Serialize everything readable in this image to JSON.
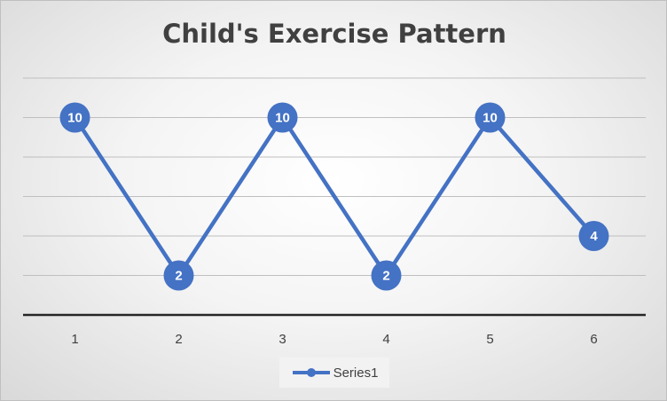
{
  "title": "Child's Exercise Pattern",
  "chart_data": {
    "type": "line",
    "title": "Child's Exercise Pattern",
    "x": [
      1,
      2,
      3,
      4,
      5,
      6
    ],
    "categories": [
      "1",
      "2",
      "3",
      "4",
      "5",
      "6"
    ],
    "series": [
      {
        "name": "Series1",
        "values": [
          10,
          2,
          10,
          2,
          10,
          4
        ],
        "color": "#4472C4"
      }
    ],
    "xlabel": "",
    "ylabel": "",
    "ylim": [
      0,
      12
    ],
    "gridlines": true,
    "y_tick_labels_visible": false,
    "data_labels": true,
    "markers": "circle",
    "legend": {
      "position": "bottom",
      "entries": [
        "Series1"
      ]
    }
  },
  "colors": {
    "series": "#4472C4",
    "gridline": "#bfbfbf",
    "axis": "#262626",
    "text": "#404040",
    "label_text": "#ffffff"
  }
}
